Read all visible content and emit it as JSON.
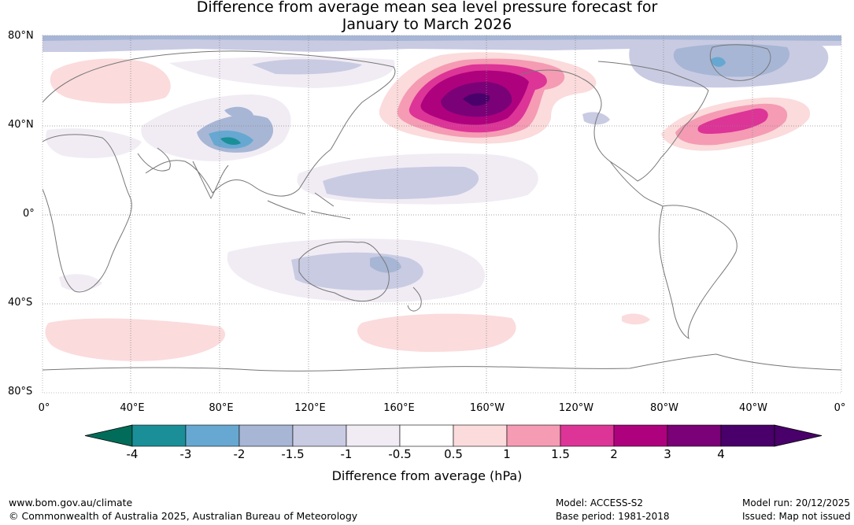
{
  "title": {
    "line1": "Difference from average mean sea level pressure forecast for",
    "line2": "January to March 2026"
  },
  "map": {
    "lat_labels": [
      "80°N",
      "40°N",
      "0°",
      "40°S",
      "80°S"
    ],
    "lon_labels": [
      "0°",
      "40°E",
      "80°E",
      "120°E",
      "160°E",
      "160°W",
      "120°W",
      "80°W",
      "40°W",
      "0°"
    ],
    "anomaly_regions": [
      {
        "name": "North Pacific / Alaska low pressure",
        "value_range": "> 4 hPa",
        "sign": "positive"
      },
      {
        "name": "North-west Atlantic (off US east coast)",
        "value_range": "2 to 3 hPa",
        "sign": "positive"
      },
      {
        "name": "Central Asia / Tibetan Plateau",
        "value_range": "-2 to -3 hPa",
        "sign": "negative"
      },
      {
        "name": "Greenland",
        "value_range": "-1.5 to -2 hPa",
        "sign": "negative"
      },
      {
        "name": "Australia / Tasman",
        "value_range": "-1.5 to -2 hPa",
        "sign": "negative"
      },
      {
        "name": "Southern Ocean south of Africa",
        "value_range": "0.5 to 1 hPa",
        "sign": "positive"
      }
    ]
  },
  "colorbar": {
    "ticks": [
      "-4",
      "-3",
      "-2",
      "-1.5",
      "-1",
      "-0.5",
      "0.5",
      "1",
      "1.5",
      "2",
      "3",
      "4"
    ],
    "colors": [
      "#1b8f97",
      "#66a8d1",
      "#a7b6d5",
      "#c9cbe3",
      "#f1ecf4",
      "#ffffff",
      "#fbdbdc",
      "#f59bb4",
      "#dd3497",
      "#ae017e",
      "#7a0177",
      "#49006a"
    ],
    "low_extension_color": "#016c59",
    "high_extension_color": "#49006a",
    "title": "Difference from average (hPa)"
  },
  "footer": {
    "url": "www.bom.gov.au/climate",
    "copyright": "© Commonwealth of Australia 2025, Australian Bureau of Meteorology",
    "model": "Model: ACCESS-S2",
    "base_period": "Base period: 1981-2018",
    "model_run": "Model run: 20/12/2025",
    "issued": "Issued: Map not issued"
  }
}
